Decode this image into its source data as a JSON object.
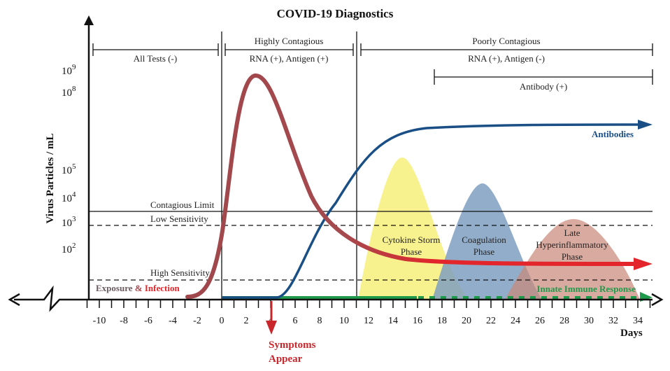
{
  "title": "COVID-19 Diagnostics",
  "y_axis": {
    "label": "Virus Particles / mL",
    "ticks": [
      {
        "base": "10",
        "exp": "9"
      },
      {
        "base": "10",
        "exp": "8"
      },
      {
        "base": "10",
        "exp": "5"
      },
      {
        "base": "10",
        "exp": "4"
      },
      {
        "base": "10",
        "exp": "3"
      },
      {
        "base": "10",
        "exp": "2"
      }
    ]
  },
  "x_axis": {
    "label": "Days",
    "ticks": [
      "-10",
      "-8",
      "-6",
      "-4",
      "-2",
      "0",
      "2",
      "4",
      "6",
      "8",
      "10",
      "12",
      "14",
      "16",
      "18",
      "20",
      "22",
      "24",
      "26",
      "28",
      "30",
      "32",
      "34"
    ]
  },
  "brackets": {
    "all_tests": "All Tests (-)",
    "highly_contagious": "Highly Contagious",
    "highly_tests": "RNA (+), Antigen (+)",
    "poorly_contagious": "Poorly Contagious",
    "poorly_tests": "RNA (+), Antigen (-)",
    "antibody": "Antibody (+)"
  },
  "thresholds": {
    "contagious": "Contagious Limit",
    "low": "Low Sensitivity",
    "high": "High Sensitivity"
  },
  "phases": {
    "cytokine": [
      "Cytokine Storm",
      "Phase"
    ],
    "coagulation": [
      "Coagulation",
      "Phase"
    ],
    "late": [
      "Late",
      "Hyperinflammatory",
      "Phase"
    ]
  },
  "labels": {
    "exposure": "Exposure",
    "amp": "&",
    "infection": "Infection",
    "antibodies": "Antibodies",
    "innate": "Innate Immune Response",
    "symptoms": [
      "Symptoms",
      "Appear"
    ]
  },
  "colors": {
    "virus": "#e2262b",
    "virus_early": "#a54a4e",
    "antibodies": "#1a4f86",
    "innate": "#1e9a4a",
    "cytokine": "#f7f07a",
    "coagulation": "#7f9fc0",
    "late": "#d9a394",
    "symptoms": "#c8262b"
  }
}
